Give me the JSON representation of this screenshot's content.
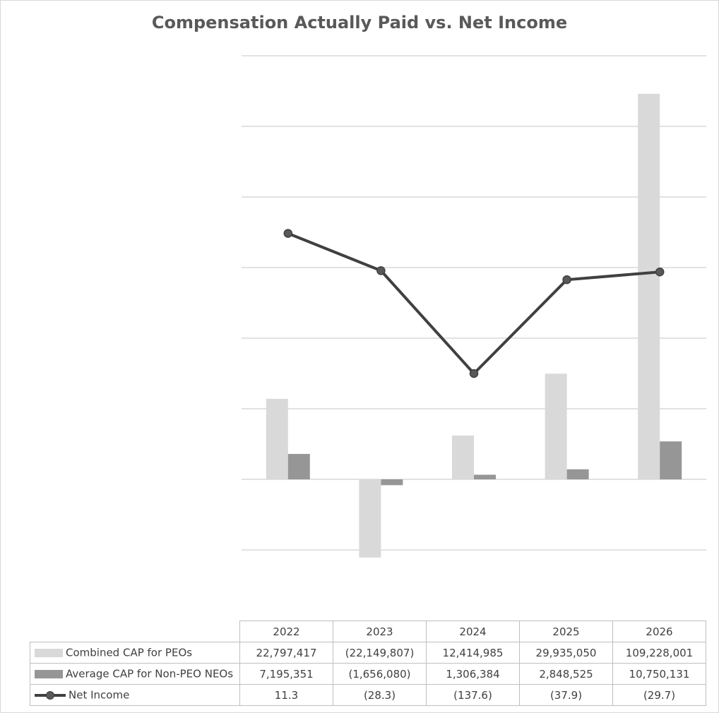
{
  "chart_data": {
    "type": "bar",
    "title": "Compensation Actually Paid vs. Net Income",
    "categories": [
      "2022",
      "2023",
      "2024",
      "2025",
      "2026"
    ],
    "series": [
      {
        "name": "Combined CAP for PEOs",
        "type": "bar",
        "color": "#d9d9d9",
        "values": [
          22797417,
          -22149807,
          12414985,
          29935050,
          109228001
        ],
        "labels": [
          "22,797,417",
          "(22,149,807)",
          "12,414,985",
          "29,935,050",
          "109,228,001"
        ]
      },
      {
        "name": "Average CAP for Non-PEO NEOs",
        "type": "bar",
        "color": "#969696",
        "values": [
          7195351,
          -1656080,
          1306384,
          2848525,
          10750131
        ],
        "labels": [
          "7,195,351",
          "(1,656,080)",
          "1,306,384",
          "2,848,525",
          "10,750,131"
        ]
      },
      {
        "name": "Net Income",
        "type": "line",
        "color": "#404040",
        "values": [
          11.3,
          -28.3,
          -137.6,
          -37.9,
          -29.7
        ],
        "labels": [
          "11.3",
          "(28.3)",
          "(137.6)",
          "(37.9)",
          "(29.7)"
        ]
      }
    ],
    "axes": {
      "left_visible": false,
      "right_visible": false,
      "bar_ylim": [
        -40000000,
        120000000
      ],
      "line_ylim": [
        -400,
        200
      ]
    },
    "grid": true,
    "legend": "data-table-below"
  }
}
